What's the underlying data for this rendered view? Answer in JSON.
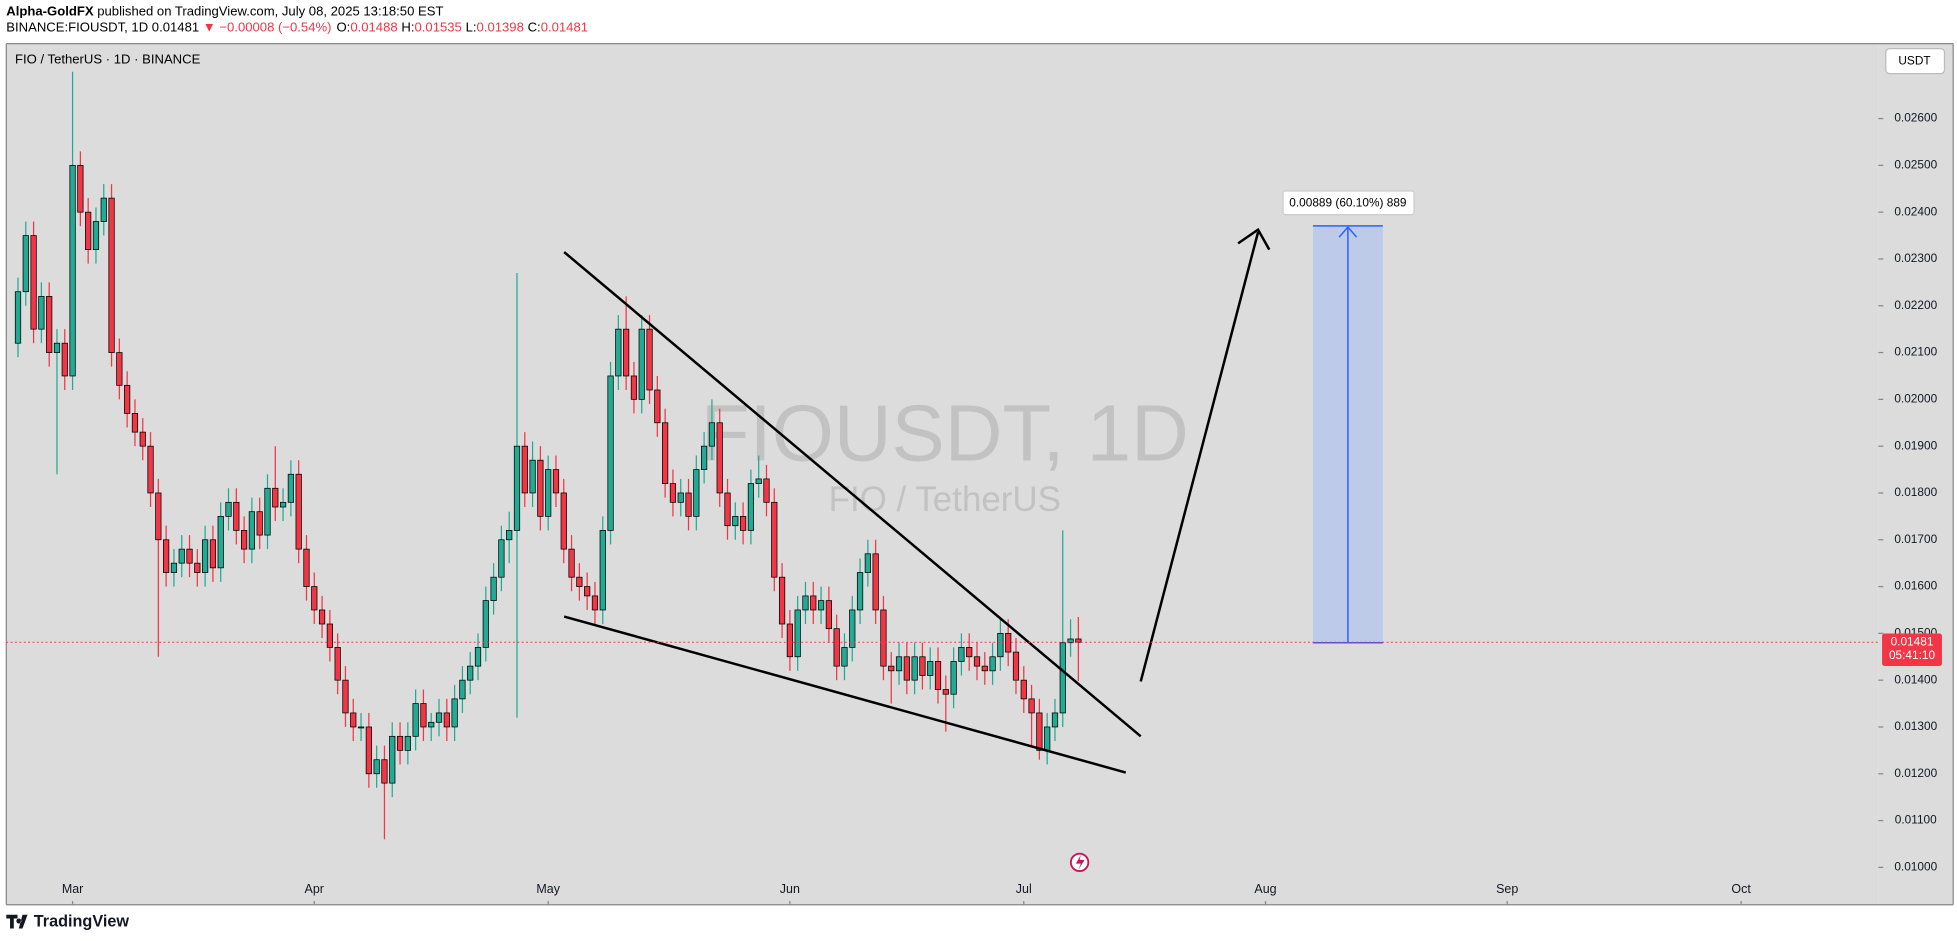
{
  "header": {
    "author": "Alpha-GoldFX",
    "published": "published on TradingView.com, July 08, 2025 13:18:50 EST",
    "symbol": "BINANCE:FIOUSDT, 1D",
    "last": "0.01481",
    "change": "▼ −0.00008 (−0.54%)",
    "ohlc": [
      {
        "label": "O:",
        "value": "0.01488"
      },
      {
        "label": "H:",
        "value": "0.01535"
      },
      {
        "label": "L:",
        "value": "0.01398"
      },
      {
        "label": "C:",
        "value": "0.01481"
      }
    ]
  },
  "chart_data": {
    "type": "candlestick",
    "title": "FIO / TetherUS · 1D · BINANCE",
    "watermark": "FIOUSDT, 1D",
    "watermark_subtitle": "FIO / TetherUS",
    "currency": "USDT",
    "brand": "TradingView",
    "measure_label": "0.00889 (60.10%) 889",
    "price_label": {
      "value": 0.01481,
      "label": "0.01481"
    },
    "countdown": "05:41:10",
    "up_color": "#22ab94",
    "down_color": "#f23645",
    "grid": false,
    "xlim": [
      -1.5,
      238.6
    ],
    "ylim": [
      0.0092,
      0.0276
    ],
    "xticks": [
      {
        "value": 7,
        "label": "Mar"
      },
      {
        "value": 38,
        "label": "Apr"
      },
      {
        "value": 68,
        "label": "May"
      },
      {
        "value": 99,
        "label": "Jun"
      },
      {
        "value": 129,
        "label": "Jul"
      },
      {
        "value": 160,
        "label": "Aug"
      },
      {
        "value": 191,
        "label": "Sep"
      },
      {
        "value": 221,
        "label": "Oct"
      }
    ],
    "yticks": [
      {
        "value": 0.01,
        "label": "0.01000"
      },
      {
        "value": 0.011,
        "label": "0.01100"
      },
      {
        "value": 0.012,
        "label": "0.01200"
      },
      {
        "value": 0.013,
        "label": "0.01300"
      },
      {
        "value": 0.014,
        "label": "0.01400"
      },
      {
        "value": 0.015,
        "label": "0.01500"
      },
      {
        "value": 0.016,
        "label": "0.01600"
      },
      {
        "value": 0.017,
        "label": "0.01700"
      },
      {
        "value": 0.018,
        "label": "0.01800"
      },
      {
        "value": 0.019,
        "label": "0.01900"
      },
      {
        "value": 0.02,
        "label": "0.02000"
      },
      {
        "value": 0.021,
        "label": "0.02100"
      },
      {
        "value": 0.022,
        "label": "0.02200"
      },
      {
        "value": 0.023,
        "label": "0.02300"
      },
      {
        "value": 0.024,
        "label": "0.02400"
      },
      {
        "value": 0.025,
        "label": "0.02500"
      },
      {
        "value": 0.026,
        "label": "0.02600"
      }
    ],
    "candles": [
      [
        0.0212,
        0.0226,
        0.0209,
        0.0223
      ],
      [
        0.0223,
        0.0238,
        0.022,
        0.0235
      ],
      [
        0.0235,
        0.0238,
        0.0212,
        0.0215
      ],
      [
        0.0215,
        0.0225,
        0.0212,
        0.0222
      ],
      [
        0.0222,
        0.0225,
        0.0207,
        0.021
      ],
      [
        0.021,
        0.0215,
        0.0184,
        0.0212
      ],
      [
        0.0212,
        0.0215,
        0.0202,
        0.0205
      ],
      [
        0.0205,
        0.027,
        0.0202,
        0.025
      ],
      [
        0.025,
        0.0253,
        0.0237,
        0.024
      ],
      [
        0.024,
        0.0243,
        0.0229,
        0.0232
      ],
      [
        0.0232,
        0.0241,
        0.0229,
        0.0238
      ],
      [
        0.0238,
        0.0246,
        0.0235,
        0.0243
      ],
      [
        0.0243,
        0.0246,
        0.0207,
        0.021
      ],
      [
        0.021,
        0.0213,
        0.02,
        0.0203
      ],
      [
        0.0203,
        0.0206,
        0.0194,
        0.0197
      ],
      [
        0.0197,
        0.02,
        0.019,
        0.0193
      ],
      [
        0.0193,
        0.0196,
        0.0187,
        0.019
      ],
      [
        0.019,
        0.0193,
        0.0177,
        0.018
      ],
      [
        0.018,
        0.0183,
        0.0145,
        0.017
      ],
      [
        0.017,
        0.0173,
        0.016,
        0.0163
      ],
      [
        0.0163,
        0.0168,
        0.016,
        0.0165
      ],
      [
        0.0165,
        0.0171,
        0.0162,
        0.0168
      ],
      [
        0.0168,
        0.0171,
        0.0162,
        0.0165
      ],
      [
        0.0165,
        0.0168,
        0.016,
        0.0163
      ],
      [
        0.0163,
        0.0173,
        0.016,
        0.017
      ],
      [
        0.017,
        0.0173,
        0.0161,
        0.0164
      ],
      [
        0.0164,
        0.0178,
        0.0161,
        0.0175
      ],
      [
        0.0175,
        0.0181,
        0.0172,
        0.0178
      ],
      [
        0.0178,
        0.0181,
        0.0169,
        0.0172
      ],
      [
        0.0172,
        0.0175,
        0.0165,
        0.0168
      ],
      [
        0.0168,
        0.0179,
        0.0165,
        0.0176
      ],
      [
        0.0176,
        0.0179,
        0.0168,
        0.0171
      ],
      [
        0.0171,
        0.0184,
        0.0168,
        0.0181
      ],
      [
        0.0181,
        0.019,
        0.0174,
        0.0177
      ],
      [
        0.0177,
        0.0181,
        0.0174,
        0.0178
      ],
      [
        0.0178,
        0.0187,
        0.0175,
        0.0184
      ],
      [
        0.0184,
        0.0187,
        0.0165,
        0.0168
      ],
      [
        0.0168,
        0.0171,
        0.0157,
        0.016
      ],
      [
        0.016,
        0.0163,
        0.0152,
        0.0155
      ],
      [
        0.0155,
        0.0158,
        0.0149,
        0.0152
      ],
      [
        0.0152,
        0.0155,
        0.0144,
        0.0147
      ],
      [
        0.0147,
        0.015,
        0.0137,
        0.014
      ],
      [
        0.014,
        0.0143,
        0.013,
        0.0133
      ],
      [
        0.0133,
        0.0136,
        0.0127,
        0.013
      ],
      [
        0.013,
        0.0133,
        0.0127,
        0.013
      ],
      [
        0.013,
        0.0133,
        0.0117,
        0.012
      ],
      [
        0.012,
        0.0126,
        0.0117,
        0.0123
      ],
      [
        0.0123,
        0.0126,
        0.0106,
        0.0118
      ],
      [
        0.0118,
        0.0131,
        0.0115,
        0.0128
      ],
      [
        0.0128,
        0.0131,
        0.0122,
        0.0125
      ],
      [
        0.0125,
        0.0131,
        0.0122,
        0.0128
      ],
      [
        0.0128,
        0.0138,
        0.0125,
        0.0135
      ],
      [
        0.0135,
        0.0138,
        0.0127,
        0.013
      ],
      [
        0.013,
        0.0133,
        0.0127,
        0.0131
      ],
      [
        0.0131,
        0.0136,
        0.0128,
        0.0133
      ],
      [
        0.0133,
        0.0136,
        0.0127,
        0.013
      ],
      [
        0.013,
        0.0139,
        0.0127,
        0.0136
      ],
      [
        0.0136,
        0.0143,
        0.0133,
        0.014
      ],
      [
        0.014,
        0.0146,
        0.0137,
        0.0143
      ],
      [
        0.0143,
        0.015,
        0.014,
        0.0147
      ],
      [
        0.0147,
        0.016,
        0.0144,
        0.0157
      ],
      [
        0.0157,
        0.0165,
        0.0154,
        0.0162
      ],
      [
        0.0162,
        0.0173,
        0.0159,
        0.017
      ],
      [
        0.017,
        0.0176,
        0.0165,
        0.0172
      ],
      [
        0.0172,
        0.0227,
        0.0132,
        0.019
      ],
      [
        0.019,
        0.0193,
        0.0177,
        0.018
      ],
      [
        0.018,
        0.0191,
        0.0177,
        0.0187
      ],
      [
        0.0187,
        0.019,
        0.0172,
        0.0175
      ],
      [
        0.0175,
        0.0188,
        0.0172,
        0.0185
      ],
      [
        0.0185,
        0.0188,
        0.0177,
        0.018
      ],
      [
        0.018,
        0.0183,
        0.0165,
        0.0168
      ],
      [
        0.0168,
        0.0171,
        0.0159,
        0.0162
      ],
      [
        0.0162,
        0.0165,
        0.0157,
        0.016
      ],
      [
        0.016,
        0.0163,
        0.0155,
        0.0158
      ],
      [
        0.0158,
        0.0161,
        0.0152,
        0.0155
      ],
      [
        0.0155,
        0.0175,
        0.0152,
        0.0172
      ],
      [
        0.0172,
        0.0208,
        0.0169,
        0.0205
      ],
      [
        0.0205,
        0.0218,
        0.0202,
        0.0215
      ],
      [
        0.0215,
        0.0222,
        0.0202,
        0.0205
      ],
      [
        0.0205,
        0.0208,
        0.0197,
        0.02
      ],
      [
        0.02,
        0.0218,
        0.0197,
        0.0215
      ],
      [
        0.0215,
        0.0218,
        0.0199,
        0.0202
      ],
      [
        0.0202,
        0.0205,
        0.0192,
        0.0195
      ],
      [
        0.0195,
        0.0198,
        0.0179,
        0.0182
      ],
      [
        0.0182,
        0.0185,
        0.0175,
        0.0178
      ],
      [
        0.0178,
        0.0183,
        0.0175,
        0.018
      ],
      [
        0.018,
        0.0183,
        0.0172,
        0.0175
      ],
      [
        0.0175,
        0.0188,
        0.0172,
        0.0185
      ],
      [
        0.0185,
        0.0193,
        0.0182,
        0.019
      ],
      [
        0.019,
        0.02,
        0.0187,
        0.0195
      ],
      [
        0.0195,
        0.0198,
        0.0177,
        0.018
      ],
      [
        0.018,
        0.0183,
        0.017,
        0.0173
      ],
      [
        0.0173,
        0.0178,
        0.017,
        0.0175
      ],
      [
        0.0175,
        0.0178,
        0.0169,
        0.0172
      ],
      [
        0.0172,
        0.0185,
        0.0169,
        0.0182
      ],
      [
        0.0182,
        0.0188,
        0.0179,
        0.0183
      ],
      [
        0.0183,
        0.0186,
        0.0175,
        0.0178
      ],
      [
        0.0178,
        0.0181,
        0.0159,
        0.0162
      ],
      [
        0.0162,
        0.0165,
        0.0149,
        0.0152
      ],
      [
        0.0152,
        0.0155,
        0.0142,
        0.0145
      ],
      [
        0.0145,
        0.0158,
        0.0142,
        0.0155
      ],
      [
        0.0155,
        0.0161,
        0.0152,
        0.0158
      ],
      [
        0.0158,
        0.0161,
        0.0152,
        0.0155
      ],
      [
        0.0155,
        0.016,
        0.0152,
        0.0157
      ],
      [
        0.0157,
        0.016,
        0.0148,
        0.0151
      ],
      [
        0.0151,
        0.0154,
        0.014,
        0.0143
      ],
      [
        0.0143,
        0.015,
        0.014,
        0.0147
      ],
      [
        0.0147,
        0.0158,
        0.0144,
        0.0155
      ],
      [
        0.0155,
        0.0166,
        0.0152,
        0.0163
      ],
      [
        0.0163,
        0.017,
        0.016,
        0.0167
      ],
      [
        0.0167,
        0.017,
        0.0152,
        0.0155
      ],
      [
        0.0155,
        0.0158,
        0.014,
        0.0143
      ],
      [
        0.0143,
        0.0146,
        0.0135,
        0.0142
      ],
      [
        0.0142,
        0.0148,
        0.0139,
        0.0145
      ],
      [
        0.0145,
        0.0148,
        0.0137,
        0.014
      ],
      [
        0.014,
        0.0148,
        0.0137,
        0.0145
      ],
      [
        0.0145,
        0.0148,
        0.0138,
        0.0141
      ],
      [
        0.0141,
        0.0147,
        0.0138,
        0.0144
      ],
      [
        0.0144,
        0.0147,
        0.0135,
        0.0138
      ],
      [
        0.0138,
        0.0141,
        0.0129,
        0.0137
      ],
      [
        0.0137,
        0.0147,
        0.0134,
        0.0144
      ],
      [
        0.0144,
        0.015,
        0.0141,
        0.0147
      ],
      [
        0.0147,
        0.015,
        0.0142,
        0.0145
      ],
      [
        0.0145,
        0.0148,
        0.014,
        0.0143
      ],
      [
        0.0143,
        0.0146,
        0.0139,
        0.0142
      ],
      [
        0.0142,
        0.0148,
        0.0139,
        0.0145
      ],
      [
        0.0145,
        0.0153,
        0.0142,
        0.015
      ],
      [
        0.015,
        0.0153,
        0.0143,
        0.0146
      ],
      [
        0.0146,
        0.0149,
        0.0137,
        0.014
      ],
      [
        0.014,
        0.0143,
        0.0133,
        0.0136
      ],
      [
        0.0136,
        0.0139,
        0.0126,
        0.0133
      ],
      [
        0.0133,
        0.0136,
        0.0123,
        0.0125
      ],
      [
        0.0125,
        0.0133,
        0.0122,
        0.013
      ],
      [
        0.013,
        0.0136,
        0.0127,
        0.0133
      ],
      [
        0.0133,
        0.0172,
        0.013,
        0.0148
      ],
      [
        0.0148,
        0.0153,
        0.0145,
        0.01488
      ],
      [
        0.01488,
        0.01535,
        0.01398,
        0.01481
      ]
    ]
  }
}
